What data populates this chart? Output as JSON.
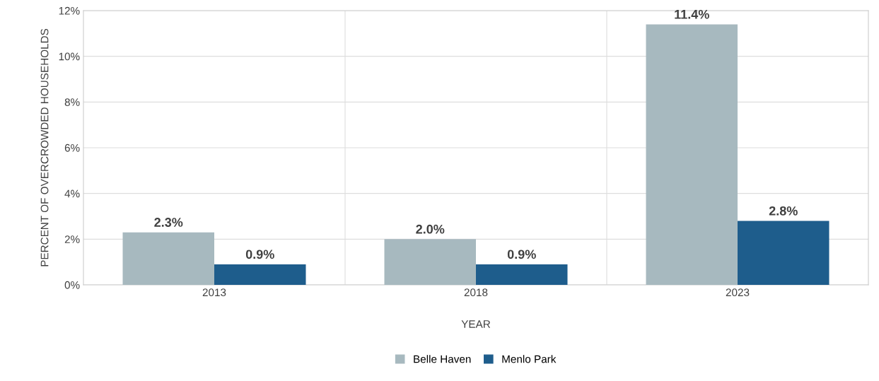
{
  "chart_data": {
    "type": "bar",
    "xlabel": "YEAR",
    "ylabel": "PERCENT OF OVERCROWDED HOUSEHOLDS",
    "categories": [
      "2013",
      "2018",
      "2023"
    ],
    "series": [
      {
        "name": "Belle Haven",
        "color": "#a7b9bf",
        "values": [
          2.3,
          2.0,
          11.4
        ],
        "value_labels": [
          "2.3%",
          "2.0%",
          "11.4%"
        ]
      },
      {
        "name": "Menlo Park",
        "color": "#1e5d8c",
        "values": [
          0.9,
          0.9,
          2.8
        ],
        "value_labels": [
          "0.9%",
          "0.9%",
          "2.8%"
        ]
      }
    ],
    "ylim": [
      0,
      12
    ],
    "yticks": [
      {
        "value": 0,
        "label": "0%"
      },
      {
        "value": 2,
        "label": "2%"
      },
      {
        "value": 4,
        "label": "4%"
      },
      {
        "value": 6,
        "label": "6%"
      },
      {
        "value": 8,
        "label": "8%"
      },
      {
        "value": 10,
        "label": "10%"
      },
      {
        "value": 12,
        "label": "12%"
      }
    ],
    "grid": true,
    "legend": "bottom"
  }
}
